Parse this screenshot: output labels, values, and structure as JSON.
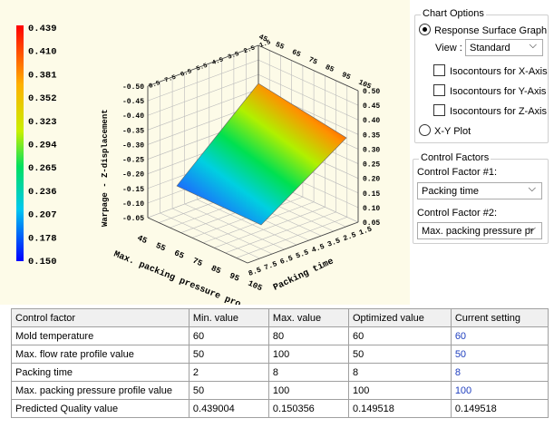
{
  "colorbar": {
    "labels": [
      "0.439",
      "0.410",
      "0.381",
      "0.352",
      "0.323",
      "0.294",
      "0.265",
      "0.236",
      "0.207",
      "0.178",
      "0.150"
    ]
  },
  "plot": {
    "z_title": "Warpage - Z-displacement",
    "z_left": [
      "-0.50",
      "-0.45",
      "-0.40",
      "-0.35",
      "-0.30",
      "-0.25",
      "-0.20",
      "-0.15",
      "-0.10",
      "-0.05"
    ],
    "z_right": [
      "0.50",
      "0.45",
      "0.40",
      "0.35",
      "0.30",
      "0.25",
      "0.20",
      "0.15",
      "0.10",
      "0.05"
    ],
    "x_title": "Max. packing pressure pro",
    "x_ticks": [
      "45",
      "55",
      "65",
      "75",
      "85",
      "95",
      "105"
    ],
    "y_title": "Packing time",
    "y_ticks": [
      "8.5",
      "7.5",
      "6.5",
      "5.5",
      "4.5",
      "3.5",
      "2.5",
      "1.5"
    ]
  },
  "options": {
    "title": "Chart Options",
    "response": "Response Surface Graph",
    "view_label": "View :",
    "view_value": "Standard",
    "iso_x": "Isocontours for X-Axis",
    "iso_y": "Isocontours for Y-Axis",
    "iso_z": "Isocontours for Z-Axis",
    "xy": "X-Y Plot"
  },
  "factors": {
    "title": "Control Factors",
    "f1_label": "Control Factor #1:",
    "f1_value": "Packing time",
    "f2_label": "Control Factor #2:",
    "f2_value": "Max. packing pressure pr"
  },
  "table": {
    "header": [
      "Control factor",
      "Min. value",
      "Max. value",
      "Optimized value",
      "Current setting"
    ],
    "rows": [
      [
        "Mold temperature",
        "60",
        "80",
        "60",
        "60"
      ],
      [
        "Max. flow rate profile value",
        "50",
        "100",
        "50",
        "50"
      ],
      [
        "Packing time",
        "2",
        "8",
        "8",
        "8"
      ],
      [
        "Max. packing pressure profile value",
        "50",
        "100",
        "100",
        "100"
      ],
      [
        "Predicted Quality value",
        "0.439004",
        "0.150356",
        "0.149518",
        "0.149518"
      ]
    ]
  }
}
